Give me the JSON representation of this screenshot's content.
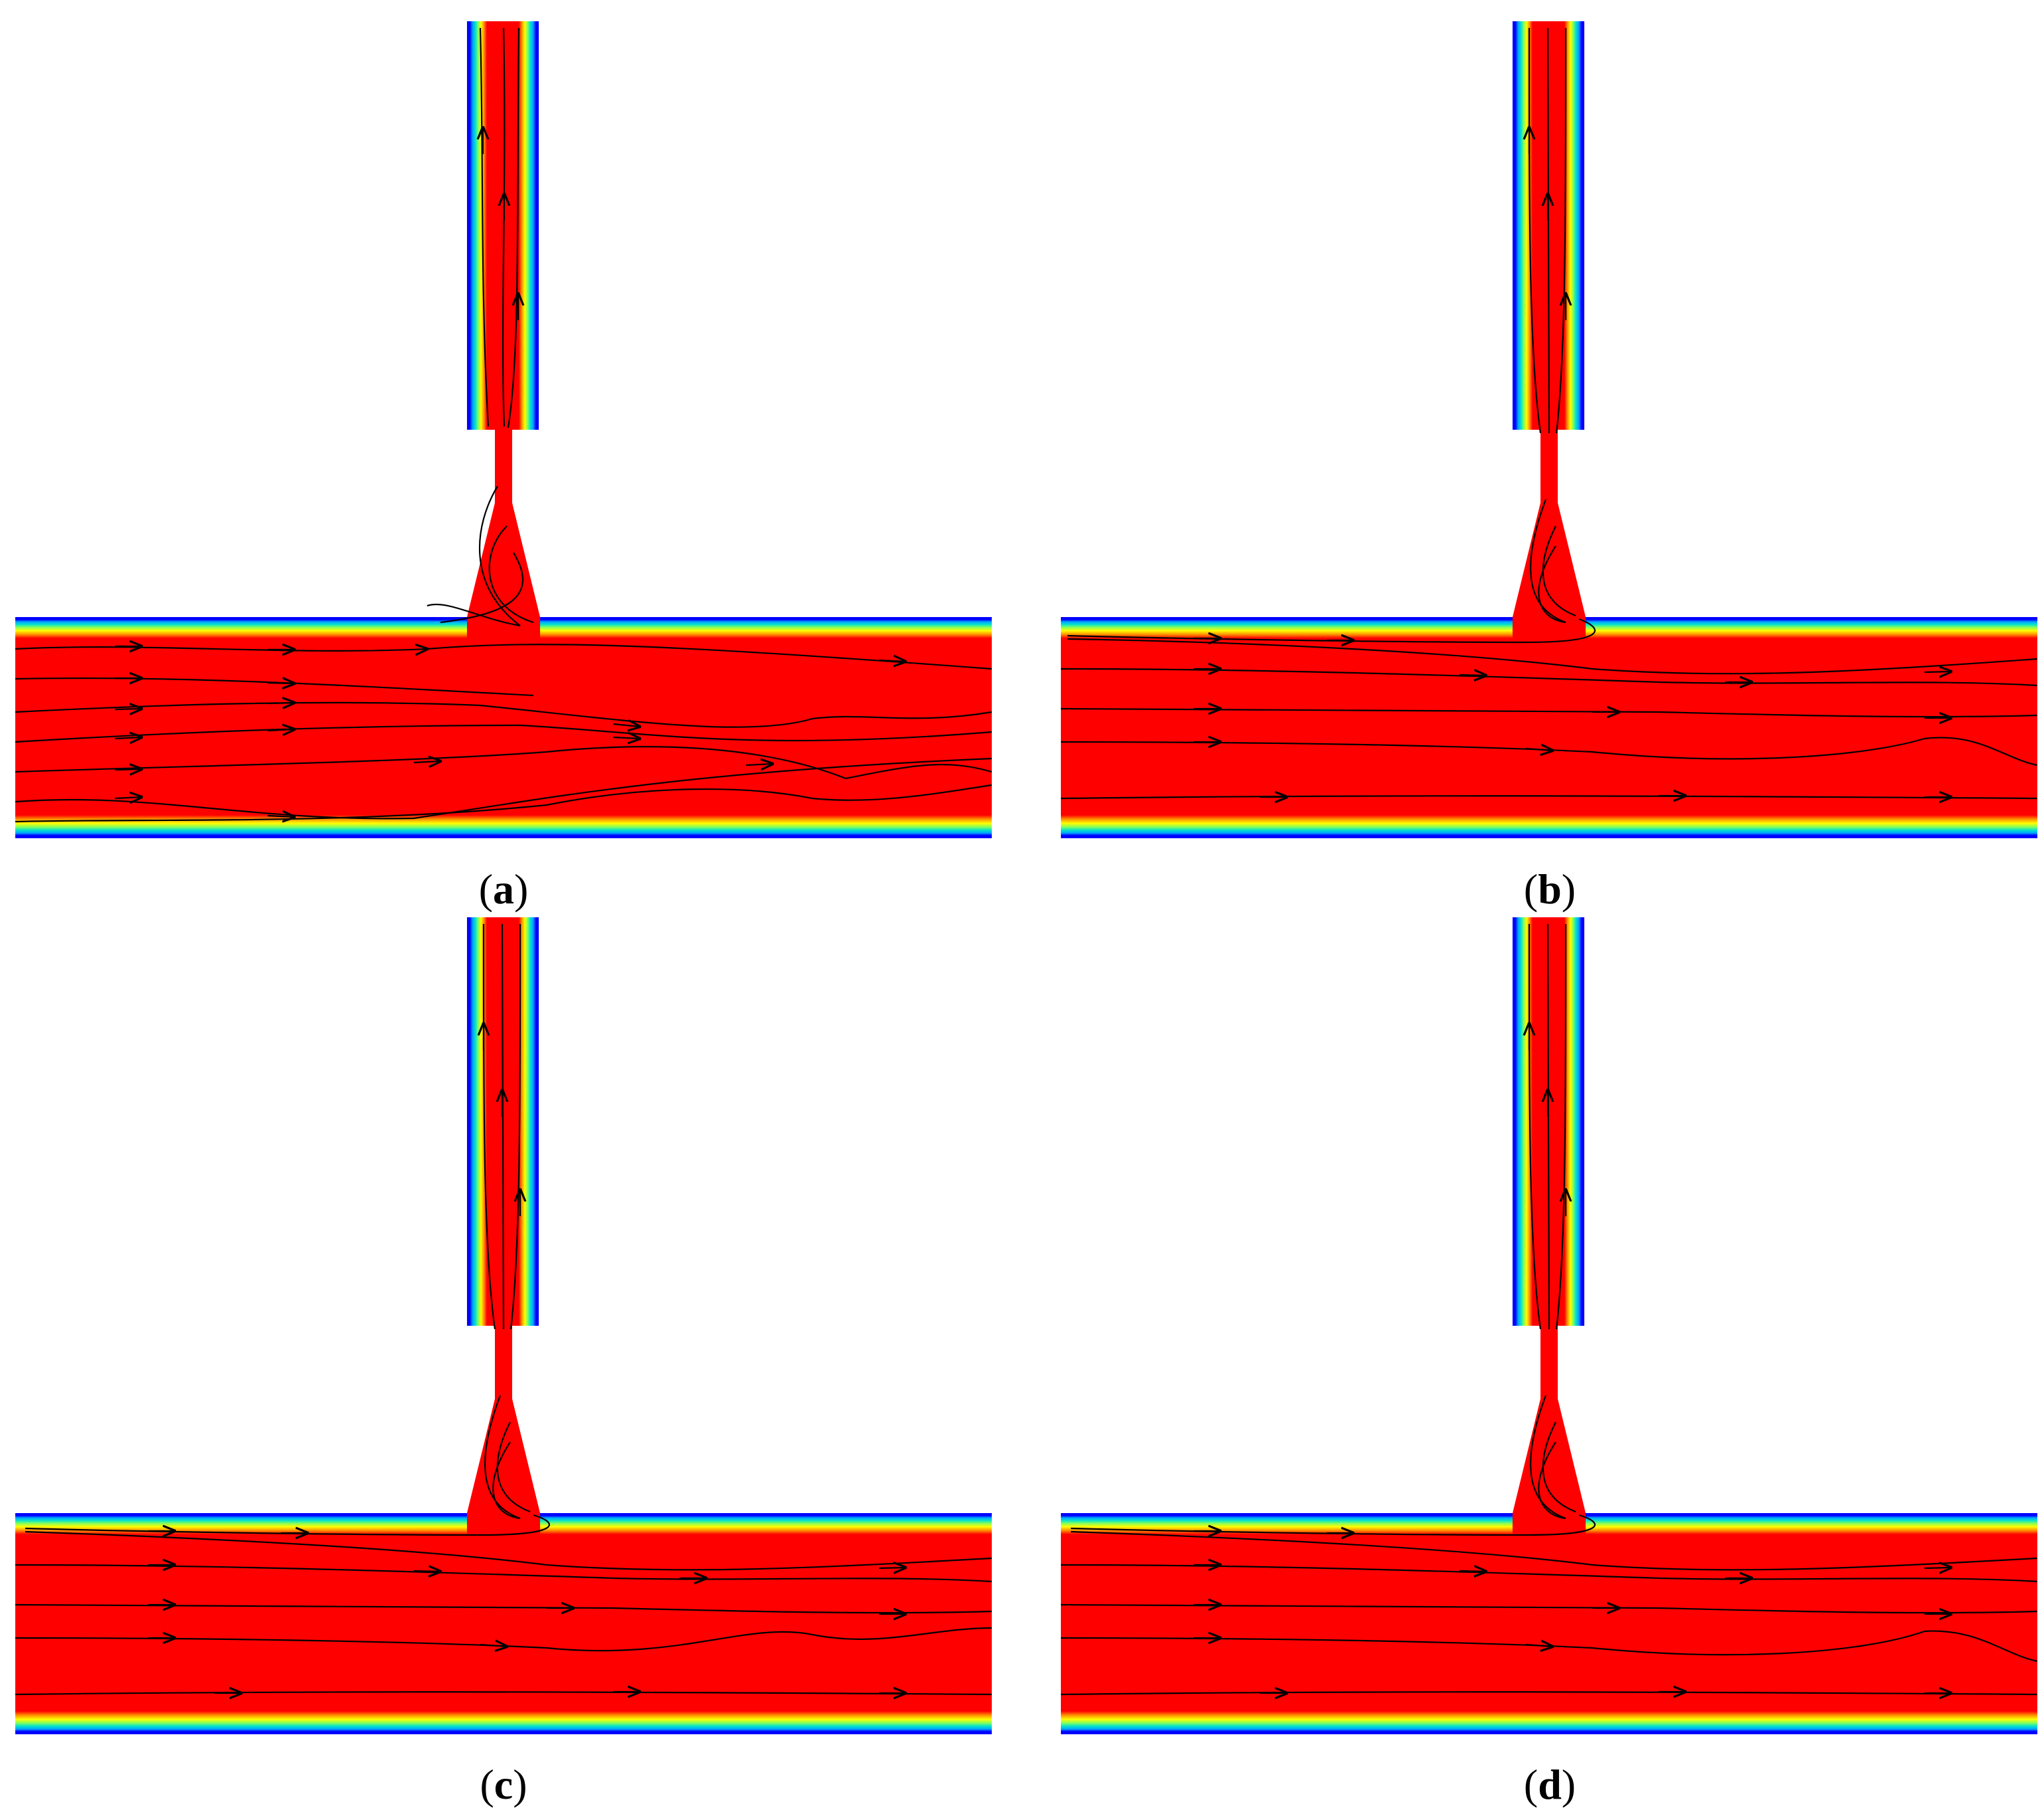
{
  "figure": {
    "panels": [
      {
        "label": "a"
      },
      {
        "label": "b"
      },
      {
        "label": "c"
      },
      {
        "label": "d"
      }
    ],
    "colors": {
      "fluid": "#ff0000",
      "wall": "#0000ff",
      "gradient": [
        "#0000ff",
        "#00a0ff",
        "#00e0d0",
        "#80ff60",
        "#ffff00",
        "#ff9000",
        "#ff0000"
      ],
      "streamline": "#000000"
    }
  }
}
